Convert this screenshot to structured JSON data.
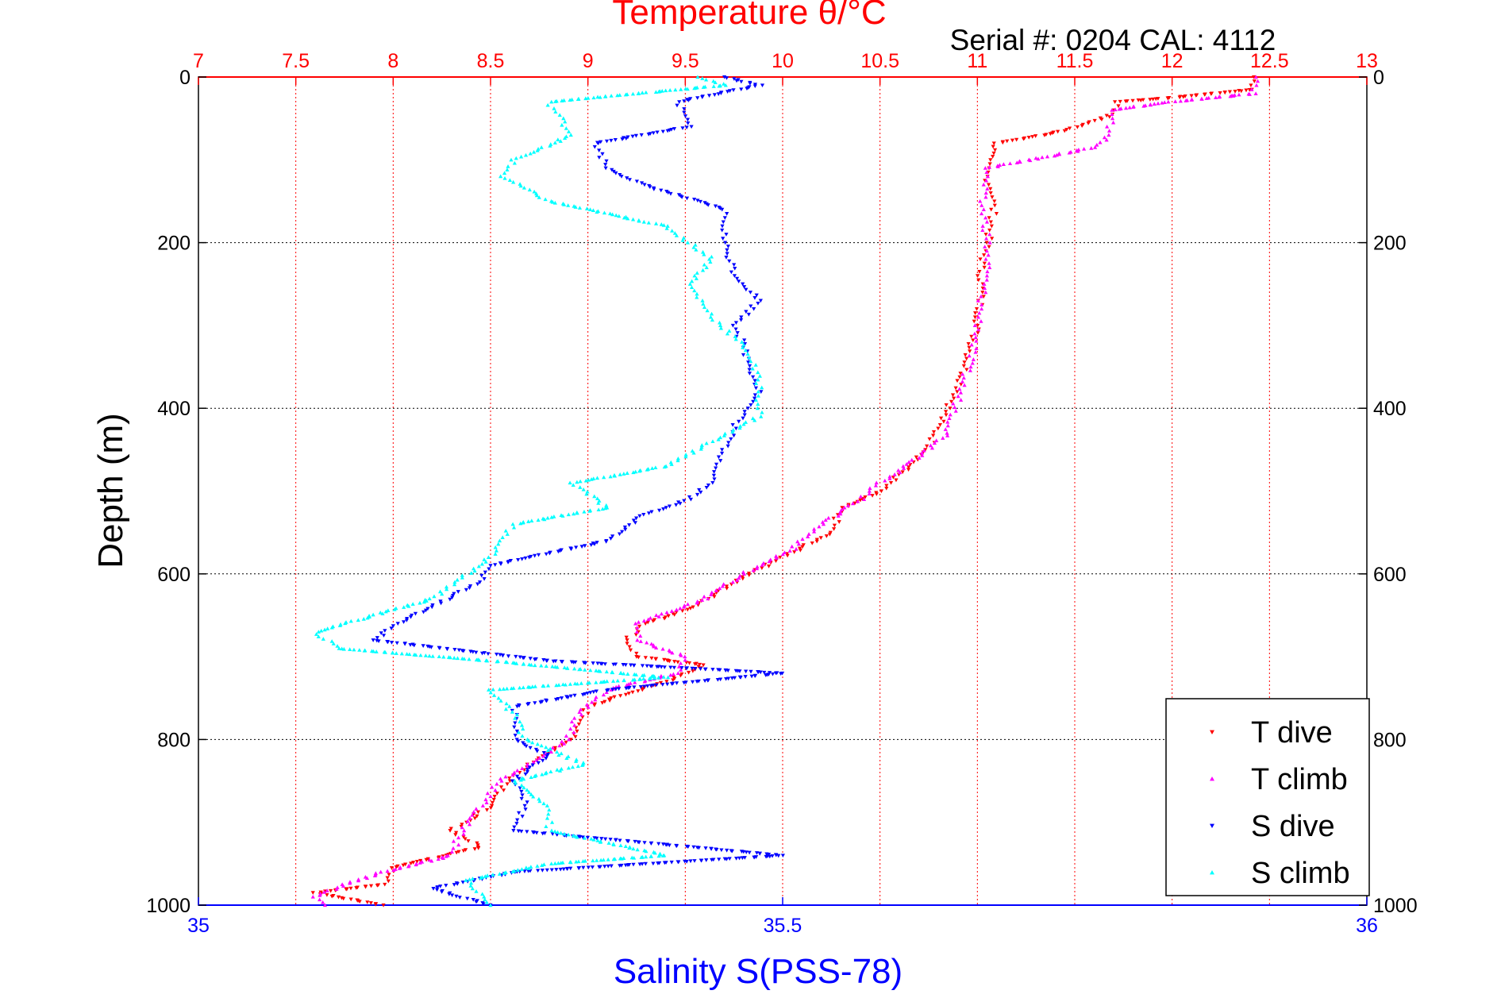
{
  "chart_data": {
    "type": "scatter",
    "title": "Temperature θ/°C",
    "annotation": "Serial #: 0204  CAL: 4112",
    "xlabel": "Salinity S(PSS-78)",
    "ylabel": "Depth (m)",
    "x_top": {
      "label": "Temperature θ/°C",
      "range": [
        7,
        13
      ],
      "ticks": [
        "7",
        "7.5",
        "8",
        "8.5",
        "9",
        "9.5",
        "10",
        "10.5",
        "11",
        "11.5",
        "12",
        "12.5",
        "13"
      ],
      "color": "#ff0000"
    },
    "x_bottom": {
      "label": "Salinity S(PSS-78)",
      "range": [
        35,
        36
      ],
      "ticks": [
        "35",
        "35.5",
        "36"
      ],
      "color": "#0000ff"
    },
    "y": {
      "range": [
        0,
        1000
      ],
      "reversed": true,
      "ticks": [
        "0",
        "200",
        "400",
        "600",
        "800",
        "1000"
      ]
    },
    "grid": true,
    "legend_position": "bottom-right",
    "series": [
      {
        "name": "T dive",
        "axis": "top",
        "color": "#ff0000",
        "marker": "triangle-down",
        "points": [
          [
            12.42,
            0
          ],
          [
            12.42,
            15
          ],
          [
            12.0,
            25
          ],
          [
            11.72,
            30
          ],
          [
            11.7,
            45
          ],
          [
            11.45,
            65
          ],
          [
            11.1,
            80
          ],
          [
            11.05,
            100
          ],
          [
            11.05,
            120
          ],
          [
            11.08,
            140
          ],
          [
            11.08,
            170
          ],
          [
            11.05,
            200
          ],
          [
            11.02,
            230
          ],
          [
            11.02,
            260
          ],
          [
            11.0,
            300
          ],
          [
            10.95,
            340
          ],
          [
            10.9,
            380
          ],
          [
            10.8,
            420
          ],
          [
            10.75,
            450
          ],
          [
            10.6,
            480
          ],
          [
            10.5,
            500
          ],
          [
            10.3,
            520
          ],
          [
            10.25,
            550
          ],
          [
            10.0,
            580
          ],
          [
            9.75,
            610
          ],
          [
            9.55,
            640
          ],
          [
            9.3,
            660
          ],
          [
            9.2,
            680
          ],
          [
            9.25,
            700
          ],
          [
            9.6,
            710
          ],
          [
            9.4,
            730
          ],
          [
            9.0,
            760
          ],
          [
            8.95,
            790
          ],
          [
            8.85,
            810
          ],
          [
            8.7,
            830
          ],
          [
            8.6,
            850
          ],
          [
            8.5,
            880
          ],
          [
            8.3,
            910
          ],
          [
            8.45,
            930
          ],
          [
            8.0,
            955
          ],
          [
            7.95,
            975
          ],
          [
            7.6,
            985
          ],
          [
            7.95,
            1000
          ]
        ]
      },
      {
        "name": "T climb",
        "axis": "top",
        "color": "#ff00ff",
        "marker": "triangle-up",
        "points": [
          [
            12.45,
            0
          ],
          [
            12.42,
            20
          ],
          [
            12.0,
            30
          ],
          [
            11.68,
            40
          ],
          [
            11.68,
            70
          ],
          [
            11.6,
            85
          ],
          [
            11.05,
            110
          ],
          [
            11.02,
            150
          ],
          [
            11.05,
            190
          ],
          [
            11.05,
            230
          ],
          [
            11.02,
            270
          ],
          [
            11.0,
            310
          ],
          [
            10.95,
            350
          ],
          [
            10.9,
            390
          ],
          [
            10.85,
            430
          ],
          [
            10.7,
            460
          ],
          [
            10.5,
            490
          ],
          [
            10.4,
            510
          ],
          [
            10.2,
            540
          ],
          [
            10.05,
            570
          ],
          [
            9.8,
            600
          ],
          [
            9.6,
            630
          ],
          [
            9.25,
            660
          ],
          [
            9.25,
            680
          ],
          [
            9.5,
            700
          ],
          [
            9.45,
            720
          ],
          [
            9.1,
            740
          ],
          [
            8.95,
            770
          ],
          [
            8.9,
            800
          ],
          [
            8.7,
            830
          ],
          [
            8.55,
            850
          ],
          [
            8.45,
            880
          ],
          [
            8.35,
            910
          ],
          [
            8.3,
            940
          ],
          [
            7.95,
            960
          ],
          [
            7.75,
            975
          ],
          [
            7.6,
            990
          ],
          [
            7.65,
            1000
          ]
        ]
      },
      {
        "name": "S dive",
        "axis": "bottom",
        "color": "#0000ff",
        "marker": "triangle-down",
        "points": [
          [
            35.45,
            0
          ],
          [
            35.48,
            10
          ],
          [
            35.41,
            30
          ],
          [
            35.42,
            60
          ],
          [
            35.34,
            80
          ],
          [
            35.35,
            110
          ],
          [
            35.38,
            130
          ],
          [
            35.45,
            160
          ],
          [
            35.45,
            200
          ],
          [
            35.46,
            240
          ],
          [
            35.48,
            270
          ],
          [
            35.46,
            300
          ],
          [
            35.47,
            340
          ],
          [
            35.48,
            380
          ],
          [
            35.46,
            420
          ],
          [
            35.45,
            450
          ],
          [
            35.44,
            490
          ],
          [
            35.42,
            510
          ],
          [
            35.38,
            530
          ],
          [
            35.35,
            560
          ],
          [
            35.25,
            590
          ],
          [
            35.24,
            610
          ],
          [
            35.2,
            640
          ],
          [
            35.17,
            660
          ],
          [
            35.15,
            680
          ],
          [
            35.3,
            705
          ],
          [
            35.5,
            720
          ],
          [
            35.35,
            740
          ],
          [
            35.27,
            760
          ],
          [
            35.27,
            800
          ],
          [
            35.3,
            820
          ],
          [
            35.27,
            850
          ],
          [
            35.28,
            880
          ],
          [
            35.27,
            910
          ],
          [
            35.5,
            940
          ],
          [
            35.27,
            960
          ],
          [
            35.2,
            980
          ],
          [
            35.25,
            1000
          ]
        ]
      },
      {
        "name": "S climb",
        "axis": "bottom",
        "color": "#00ffff",
        "marker": "triangle-up",
        "points": [
          [
            35.43,
            0
          ],
          [
            35.45,
            10
          ],
          [
            35.3,
            30
          ],
          [
            35.32,
            70
          ],
          [
            35.27,
            100
          ],
          [
            35.26,
            120
          ],
          [
            35.3,
            150
          ],
          [
            35.4,
            180
          ],
          [
            35.44,
            220
          ],
          [
            35.42,
            250
          ],
          [
            35.44,
            290
          ],
          [
            35.47,
            330
          ],
          [
            35.48,
            370
          ],
          [
            35.48,
            410
          ],
          [
            35.44,
            440
          ],
          [
            35.4,
            470
          ],
          [
            35.32,
            490
          ],
          [
            35.35,
            520
          ],
          [
            35.27,
            540
          ],
          [
            35.25,
            580
          ],
          [
            35.22,
            610
          ],
          [
            35.2,
            630
          ],
          [
            35.1,
            670
          ],
          [
            35.12,
            690
          ],
          [
            35.25,
            705
          ],
          [
            35.4,
            725
          ],
          [
            35.25,
            740
          ],
          [
            35.27,
            770
          ],
          [
            35.28,
            800
          ],
          [
            35.33,
            830
          ],
          [
            35.27,
            850
          ],
          [
            35.3,
            880
          ],
          [
            35.3,
            910
          ],
          [
            35.4,
            940
          ],
          [
            35.3,
            950
          ],
          [
            35.23,
            970
          ],
          [
            35.25,
            1000
          ]
        ]
      }
    ]
  }
}
